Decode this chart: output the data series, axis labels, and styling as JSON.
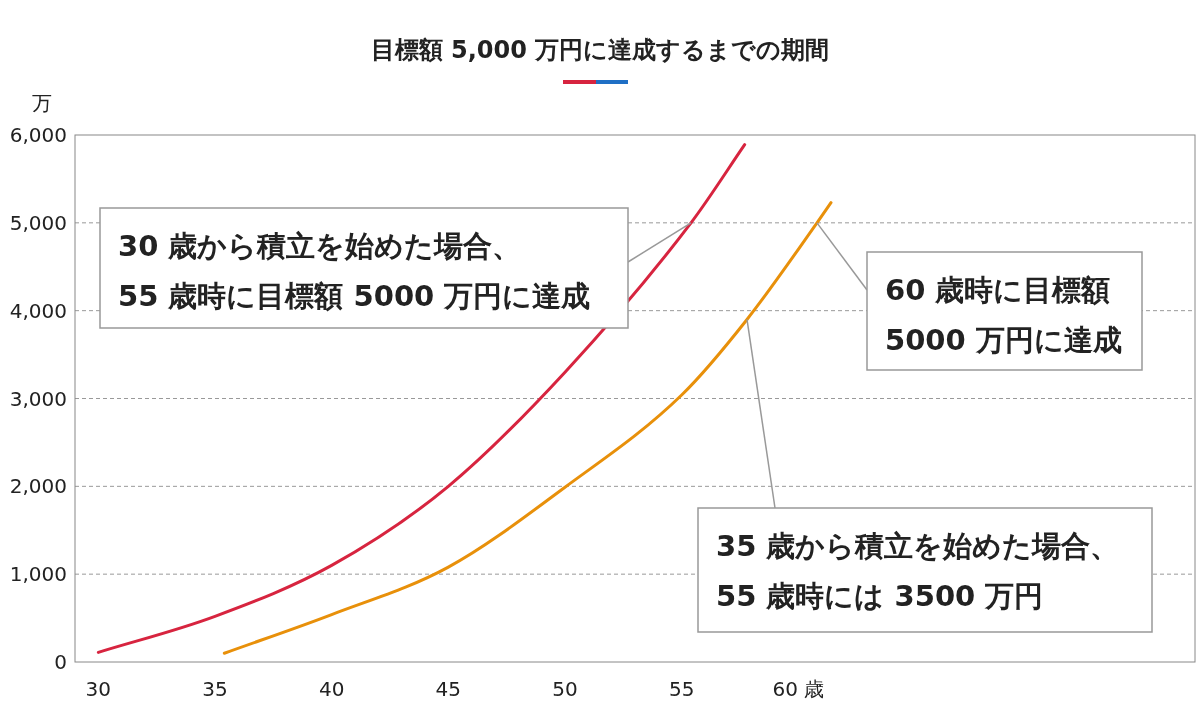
{
  "chart_data": {
    "type": "line",
    "title": "目標額 5,000 万円に達成するまでの期間",
    "ylabel": "万",
    "xlim": [
      29,
      77
    ],
    "ylim": [
      0,
      6000
    ],
    "xticks": [
      30,
      35,
      40,
      45,
      50,
      55,
      {
        "value": 60,
        "label": "60 歳"
      }
    ],
    "yticks": [
      0,
      {
        "value": 1000,
        "label": "1,000"
      },
      {
        "value": 2000,
        "label": "2,000"
      },
      {
        "value": 3000,
        "label": "3,000"
      },
      {
        "value": 4000,
        "label": "4,000"
      },
      {
        "value": 5000,
        "label": "5,000"
      },
      {
        "value": 6000,
        "label": "6,000"
      }
    ],
    "grid": "y",
    "series": [
      {
        "color": "#d7243f",
        "x": [
          30,
          35,
          40,
          45,
          50,
          55.4,
          57.7
        ],
        "values": [
          110,
          520,
          1100,
          2000,
          3300,
          5000,
          5890
        ]
      },
      {
        "color": "#e8900a",
        "x": [
          35.4,
          40,
          45,
          50,
          55,
          57.8,
          60.8,
          61.4
        ],
        "values": [
          100,
          540,
          1080,
          1990,
          3040,
          3900,
          5000,
          5230
        ]
      }
    ],
    "annotations": [
      {
        "text": "30 歳から積立を始めた場合、\n55 歳時に目標額 5000 万円に達成",
        "x": 55.4,
        "y": 5000
      },
      {
        "text": "60 歳時に目標額\n5000 万円に達成",
        "x": 60.8,
        "y": 5000
      },
      {
        "text": "35 歳から積立を始めた場合、\n55 歳時には 3500 万円",
        "x": 57.8,
        "y": 3900
      }
    ]
  }
}
